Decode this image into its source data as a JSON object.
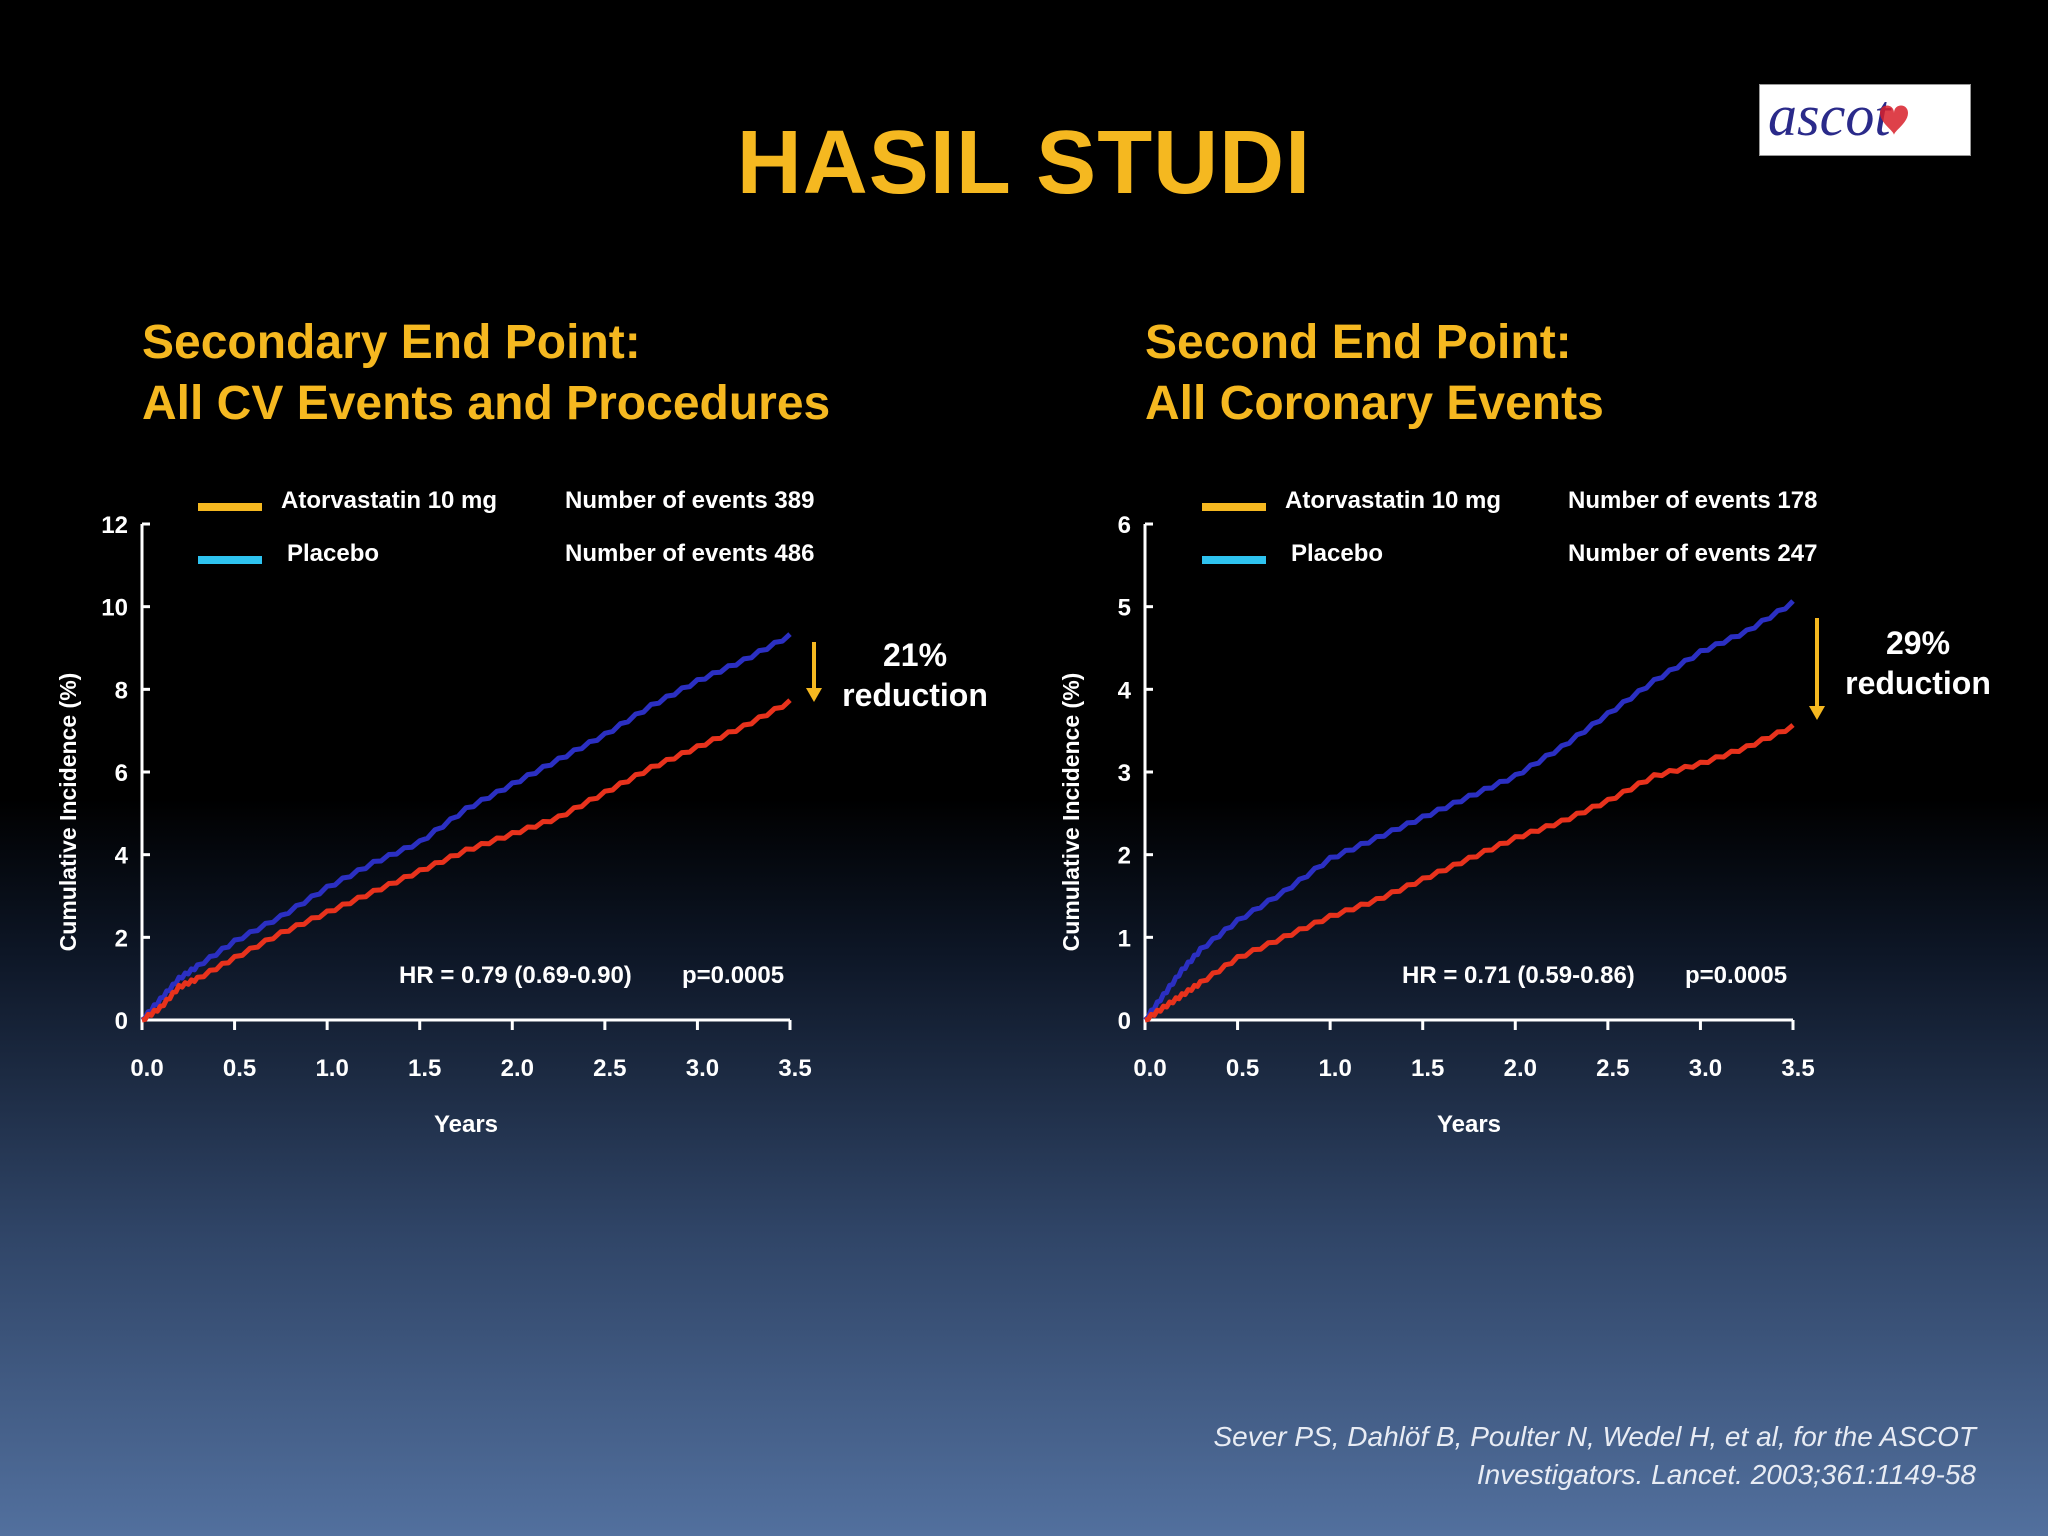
{
  "slide": {
    "title": "HASIL STUDI",
    "logo_text": "ascot",
    "citation_line1": "Sever PS, Dahlöf B, Poulter N, Wedel H, et al, for the ASCOT",
    "citation_line2": "Investigators. Lancet. 2003;361:1149-58"
  },
  "colors": {
    "title": "#f5b820",
    "atorvastatin_legend": "#f5b820",
    "placebo_legend": "#2ec3f0",
    "atorvastatin_line": "#e8321c",
    "placebo_line": "#2b2fc2",
    "arrow": "#f5b820",
    "axis": "#ffffff"
  },
  "chart_data": [
    {
      "type": "line",
      "heading_line1": "Secondary End Point:",
      "heading_line2": "All CV Events and Procedures",
      "xlabel": "Years",
      "ylabel": "Cumulative Incidence (%)",
      "xlim": [
        0,
        3.5
      ],
      "ylim": [
        0,
        12
      ],
      "xticks": [
        "0.0",
        "0.5",
        "1.0",
        "1.5",
        "2.0",
        "2.5",
        "3.0",
        "3.5"
      ],
      "yticks": [
        "0",
        "2",
        "4",
        "6",
        "8",
        "10",
        "12"
      ],
      "legend": [
        {
          "label": "Atorvastatin 10 mg",
          "events": "Number of events 389",
          "color": "#f5b820"
        },
        {
          "label": "Placebo",
          "events": "Number of events 486",
          "color": "#2ec3f0"
        }
      ],
      "series": [
        {
          "name": "Placebo",
          "color": "#2b2fc2",
          "x": [
            0,
            0.1,
            0.2,
            0.3,
            0.5,
            0.75,
            1.0,
            1.25,
            1.5,
            1.75,
            2.0,
            2.25,
            2.5,
            2.75,
            3.0,
            3.25,
            3.5
          ],
          "y": [
            0,
            0.5,
            1.0,
            1.3,
            1.9,
            2.5,
            3.2,
            3.8,
            4.3,
            5.1,
            5.7,
            6.3,
            6.9,
            7.6,
            8.2,
            8.7,
            9.3
          ]
        },
        {
          "name": "Atorvastatin 10 mg",
          "color": "#e8321c",
          "x": [
            0,
            0.1,
            0.2,
            0.3,
            0.5,
            0.75,
            1.0,
            1.25,
            1.5,
            1.75,
            2.0,
            2.25,
            2.5,
            2.75,
            3.0,
            3.25,
            3.5
          ],
          "y": [
            0,
            0.3,
            0.8,
            1.0,
            1.5,
            2.1,
            2.6,
            3.1,
            3.6,
            4.1,
            4.5,
            4.9,
            5.5,
            6.1,
            6.6,
            7.1,
            7.7
          ]
        }
      ],
      "hr_text": "HR = 0.79 (0.69-0.90)",
      "p_text": "p=0.0005",
      "reduction_pct": "21%",
      "reduction_word": "reduction"
    },
    {
      "type": "line",
      "heading_line1": "Second End Point:",
      "heading_line2": "All Coronary Events",
      "xlabel": "Years",
      "ylabel": "Cumulative Incidence (%)",
      "xlim": [
        0,
        3.5
      ],
      "ylim": [
        0,
        6
      ],
      "xticks": [
        "0.0",
        "0.5",
        "1.0",
        "1.5",
        "2.0",
        "2.5",
        "3.0",
        "3.5"
      ],
      "yticks": [
        "0",
        "1",
        "2",
        "3",
        "4",
        "5",
        "6"
      ],
      "legend": [
        {
          "label": "Atorvastatin 10 mg",
          "events": "Number of events 178",
          "color": "#f5b820"
        },
        {
          "label": "Placebo",
          "events": "Number of events 247",
          "color": "#2ec3f0"
        }
      ],
      "series": [
        {
          "name": "Placebo",
          "color": "#2b2fc2",
          "x": [
            0,
            0.1,
            0.2,
            0.3,
            0.5,
            0.75,
            1.0,
            1.25,
            1.5,
            1.75,
            2.0,
            2.25,
            2.5,
            2.75,
            3.0,
            3.25,
            3.5
          ],
          "y": [
            0,
            0.3,
            0.6,
            0.85,
            1.2,
            1.55,
            1.95,
            2.2,
            2.45,
            2.7,
            2.95,
            3.3,
            3.7,
            4.1,
            4.45,
            4.7,
            5.05
          ]
        },
        {
          "name": "Atorvastatin 10 mg",
          "color": "#e8321c",
          "x": [
            0,
            0.1,
            0.2,
            0.3,
            0.5,
            0.75,
            1.0,
            1.25,
            1.5,
            1.75,
            2.0,
            2.25,
            2.5,
            2.75,
            3.0,
            3.25,
            3.5
          ],
          "y": [
            0,
            0.15,
            0.3,
            0.45,
            0.75,
            1.0,
            1.25,
            1.45,
            1.7,
            1.95,
            2.2,
            2.4,
            2.65,
            2.95,
            3.1,
            3.3,
            3.55
          ]
        }
      ],
      "hr_text": "HR = 0.71 (0.59-0.86)",
      "p_text": "p=0.0005",
      "reduction_pct": "29%",
      "reduction_word": "reduction"
    }
  ]
}
